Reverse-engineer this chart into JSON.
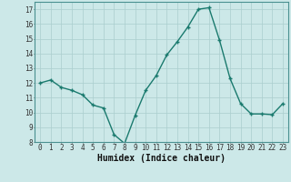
{
  "x": [
    0,
    1,
    2,
    3,
    4,
    5,
    6,
    7,
    8,
    9,
    10,
    11,
    12,
    13,
    14,
    15,
    16,
    17,
    18,
    19,
    20,
    21,
    22,
    23
  ],
  "y": [
    12.0,
    12.2,
    11.7,
    11.5,
    11.2,
    10.5,
    10.3,
    8.5,
    7.9,
    9.8,
    11.5,
    12.5,
    13.9,
    14.8,
    15.8,
    17.0,
    17.1,
    14.9,
    12.3,
    10.6,
    9.9,
    9.9,
    9.85,
    10.6
  ],
  "ylim": [
    8,
    17.5
  ],
  "xlim": [
    -0.5,
    23.5
  ],
  "yticks": [
    8,
    9,
    10,
    11,
    12,
    13,
    14,
    15,
    16,
    17
  ],
  "xticks": [
    0,
    1,
    2,
    3,
    4,
    5,
    6,
    7,
    8,
    9,
    10,
    11,
    12,
    13,
    14,
    15,
    16,
    17,
    18,
    19,
    20,
    21,
    22,
    23
  ],
  "xlabel": "Humidex (Indice chaleur)",
  "line_color": "#1a7a6e",
  "marker_color": "#1a7a6e",
  "bg_color": "#cce8e8",
  "grid_color": "#aacece",
  "xlabel_fontsize": 7,
  "tick_fontsize": 5.5,
  "linewidth": 1.0,
  "markersize": 3.5
}
